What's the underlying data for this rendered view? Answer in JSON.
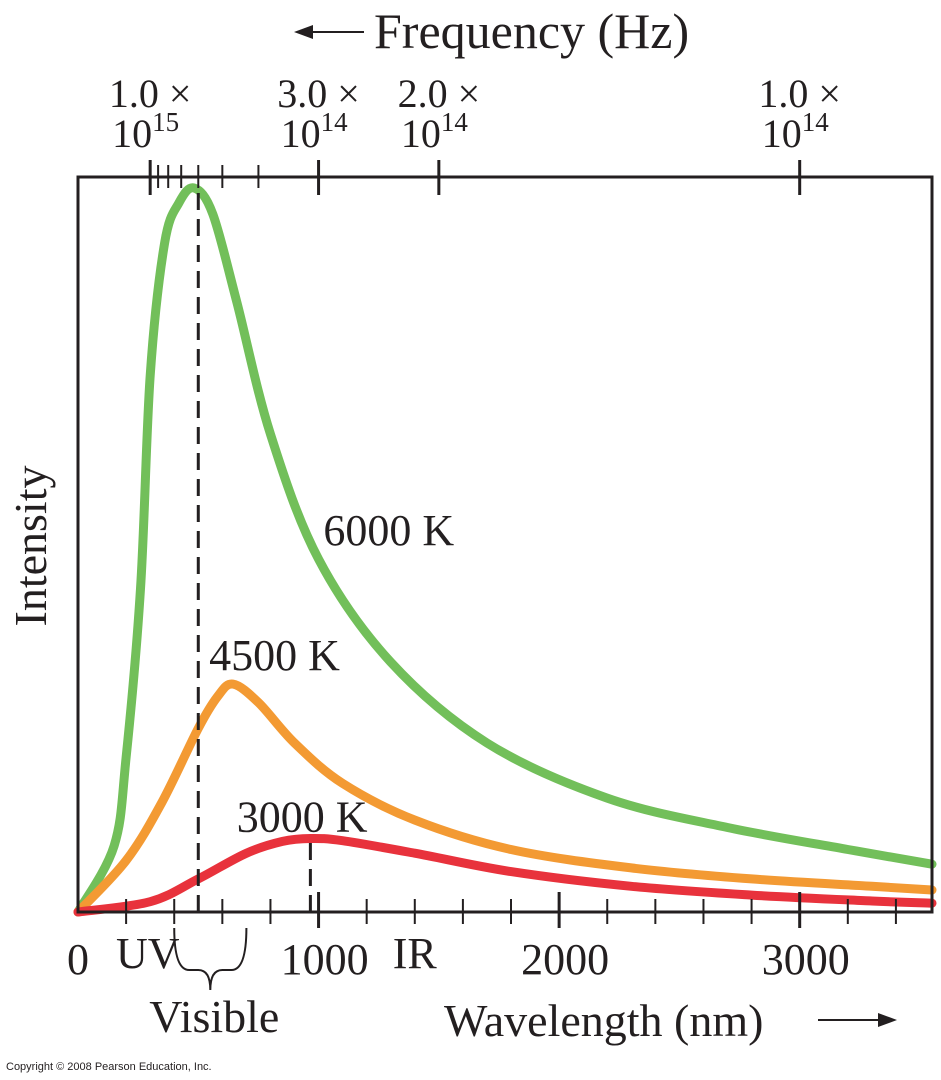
{
  "chart_data": {
    "type": "line",
    "xlabel": "Wavelength (nm)",
    "ylabel": "Intensity",
    "top_axis_label": "Frequency (Hz)",
    "xlim": [
      0,
      3550
    ],
    "ylim": [
      0,
      1
    ],
    "x_ticks": [
      0,
      1000,
      2000,
      3000
    ],
    "x_tick_labels": [
      "0",
      "1000",
      "2000",
      "3000"
    ],
    "x_minor_tick_step": 200,
    "top_ticks": [
      {
        "mantissa": "1.0 ×",
        "base": "10",
        "exp": "15",
        "wavelength_nm": 300
      },
      {
        "mantissa": "3.0 ×",
        "base": "10",
        "exp": "14",
        "wavelength_nm": 1000
      },
      {
        "mantissa": "2.0 ×",
        "base": "10",
        "exp": "14",
        "wavelength_nm": 1500
      },
      {
        "mantissa": "1.0 ×",
        "base": "10",
        "exp": "14",
        "wavelength_nm": 3000
      }
    ],
    "top_minor_ticks_nm": [
      333,
      375,
      429,
      500,
      600,
      750
    ],
    "series": [
      {
        "name": "6000 K",
        "color": "#72bf5a",
        "peak_nm": 483,
        "peak_value": 0.985,
        "x": [
          0,
          150,
          200,
          260,
          300,
          360,
          420,
          483,
          560,
          660,
          800,
          1000,
          1300,
          1700,
          2200,
          2700,
          3200,
          3550
        ],
        "y": [
          0,
          0.09,
          0.21,
          0.44,
          0.73,
          0.91,
          0.965,
          0.985,
          0.95,
          0.83,
          0.65,
          0.48,
          0.34,
          0.23,
          0.155,
          0.115,
          0.085,
          0.065
        ]
      },
      {
        "name": "4500 K",
        "color": "#f39a33",
        "peak_nm": 644,
        "peak_value": 0.31,
        "x": [
          0,
          200,
          350,
          500,
          580,
          644,
          750,
          900,
          1100,
          1400,
          1800,
          2300,
          2800,
          3300,
          3550
        ],
        "y": [
          0,
          0.07,
          0.15,
          0.25,
          0.293,
          0.31,
          0.285,
          0.23,
          0.175,
          0.125,
          0.085,
          0.06,
          0.045,
          0.035,
          0.03
        ]
      },
      {
        "name": "3000 K",
        "color": "#e8323c",
        "peak_nm": 966,
        "peak_value": 0.1,
        "x": [
          0,
          300,
          500,
          700,
          850,
          966,
          1100,
          1400,
          1800,
          2300,
          2800,
          3300,
          3550
        ],
        "y": [
          0,
          0.014,
          0.045,
          0.08,
          0.096,
          0.1,
          0.097,
          0.08,
          0.055,
          0.035,
          0.023,
          0.015,
          0.012
        ]
      }
    ],
    "series_label_positions": [
      [
        1020,
        0.52
      ],
      [
        545,
        0.35
      ],
      [
        660,
        0.13
      ]
    ],
    "reference_lines": [
      {
        "x": 500,
        "y_to": 0.985,
        "style": "dashed"
      },
      {
        "x": 966,
        "y_to": 0.1,
        "style": "dashed"
      }
    ],
    "annotations": [
      {
        "text": "UV",
        "x": 290
      },
      {
        "text": "IR",
        "x": 1400
      },
      {
        "text": "Visible",
        "x_from": 400,
        "x_to": 700,
        "style": "brace"
      }
    ]
  },
  "copyright": "Copyright © 2008 Pearson Education, Inc."
}
